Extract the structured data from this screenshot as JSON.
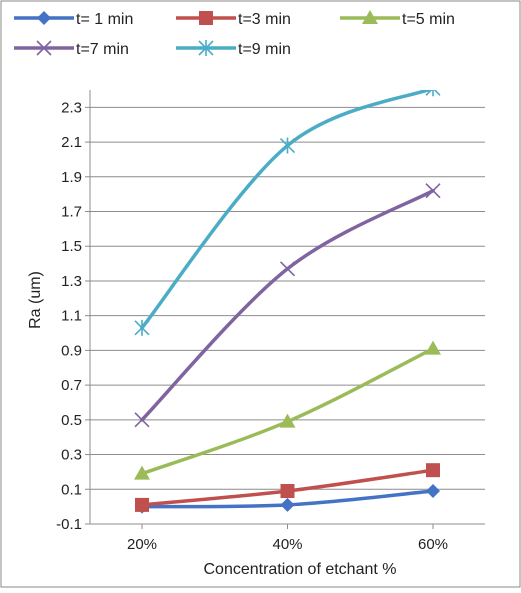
{
  "chart_data": {
    "type": "line",
    "title": "",
    "xlabel": "Concentration of etchant %",
    "ylabel": "Ra (um)",
    "categories": [
      "20%",
      "40%",
      "60%"
    ],
    "x": [
      20,
      40,
      60
    ],
    "ylim": [
      -0.1,
      2.4
    ],
    "yticks": [
      -0.1,
      0.1,
      0.3,
      0.5,
      0.7,
      0.9,
      1.1,
      1.3,
      1.5,
      1.7,
      1.9,
      2.1,
      2.3
    ],
    "ytick_labels": [
      "-0.1",
      "0.1",
      "0.3",
      "0.5",
      "0.7",
      "0.9",
      "1.1",
      "1.3",
      "1.5",
      "1.7",
      "1.9",
      "2.1",
      "2.3"
    ],
    "grid": "horizontal",
    "legend": "top",
    "series": [
      {
        "name": "t= 1 min",
        "values": [
          0.0,
          0.01,
          0.09
        ],
        "color": "#4472C4",
        "marker": "diamond"
      },
      {
        "name": "t=3 min",
        "values": [
          0.01,
          0.09,
          0.21
        ],
        "color": "#C0504D",
        "marker": "square"
      },
      {
        "name": "t=5 min",
        "values": [
          0.19,
          0.49,
          0.91
        ],
        "color": "#9BBB59",
        "marker": "triangle"
      },
      {
        "name": "t=7 min",
        "values": [
          0.5,
          1.37,
          1.82
        ],
        "color": "#8064A2",
        "marker": "x"
      },
      {
        "name": "t=9 min",
        "values": [
          1.03,
          2.08,
          2.41
        ],
        "color": "#4BACC6",
        "marker": "star"
      }
    ]
  }
}
